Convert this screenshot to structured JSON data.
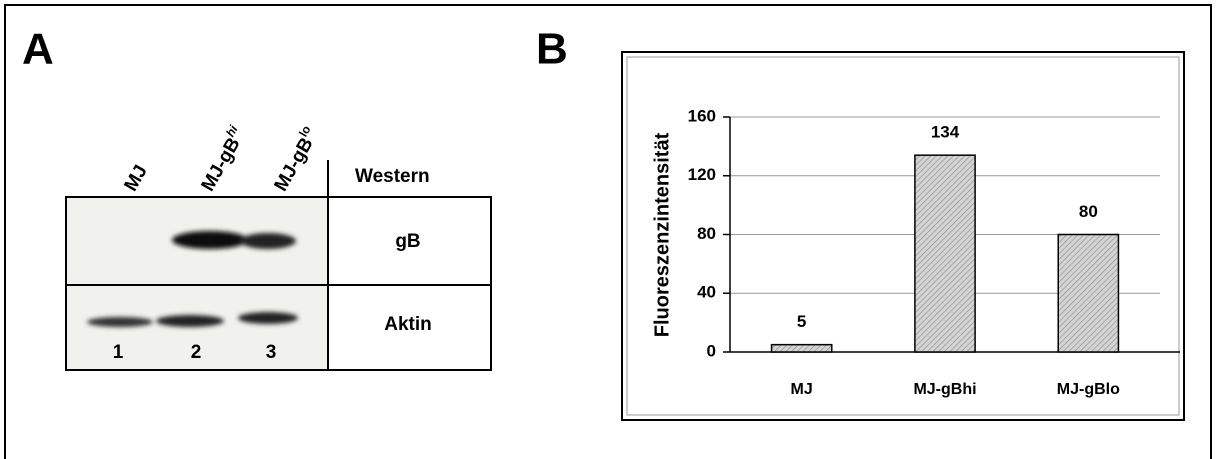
{
  "panel_a": {
    "label": "A",
    "lanes": [
      {
        "text": "MJ"
      },
      {
        "text": "MJ-gB",
        "sup": "hi"
      },
      {
        "text": "MJ-gB",
        "sup": "lo"
      }
    ],
    "method": "Western",
    "rows": [
      "gB",
      "Aktin"
    ],
    "lane_numbers": [
      "1",
      "2",
      "3"
    ]
  },
  "chart_data": {
    "type": "bar",
    "panel_label": "B",
    "y_label": "Fluoreszenzintensität",
    "categories": [
      "MJ",
      "MJ-gBhi",
      "MJ-gBlo"
    ],
    "values": [
      5,
      134,
      80
    ],
    "color": "#c8c8c8",
    "ylim": [
      0,
      160
    ],
    "yticks": [
      0,
      40,
      80,
      120,
      160
    ],
    "grid": true
  }
}
